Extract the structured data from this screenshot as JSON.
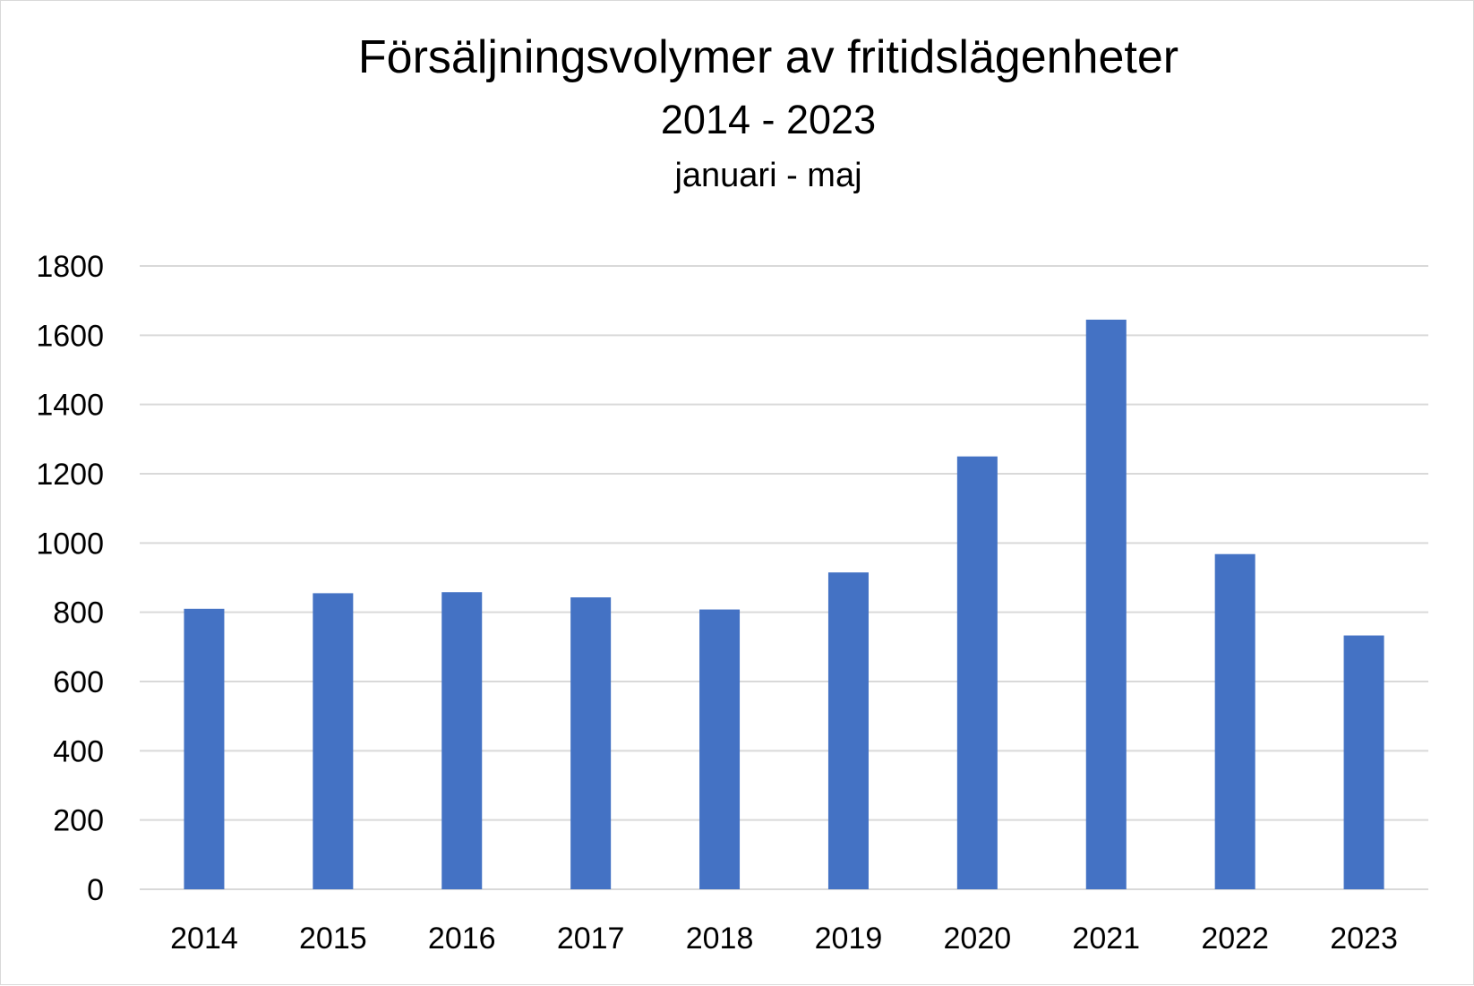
{
  "chart_data": {
    "type": "bar",
    "title": "Försäljningsvolymer av fritidslägenheter",
    "subtitle": "2014 - 2023",
    "subtitle2": "januari - maj",
    "xlabel": "",
    "ylabel": "",
    "categories": [
      "2014",
      "2015",
      "2016",
      "2017",
      "2018",
      "2019",
      "2020",
      "2021",
      "2022",
      "2023"
    ],
    "values": [
      810,
      855,
      858,
      843,
      808,
      915,
      1250,
      1645,
      968,
      733
    ],
    "ylim": [
      0,
      1800
    ],
    "yticks": [
      "0",
      "200",
      "400",
      "600",
      "800",
      "1000",
      "1200",
      "1400",
      "1600",
      "1800"
    ],
    "grid": true,
    "legend": "none",
    "bar_color": "#4472C4",
    "grid_color": "#d9d9d9"
  }
}
